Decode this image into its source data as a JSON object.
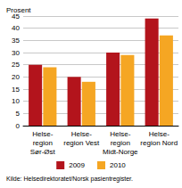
{
  "chart_data": {
    "type": "bar",
    "y_label": "Prosent",
    "source": "Kilde: Helsedirektoratet/Norsk pasientregister.",
    "categories": [
      "Helse-\nregion\nSør-Øst",
      "Helse-\nregion Vest",
      "Helse-\nregion\nMidt-Norge",
      "Helse-\nregion Nord"
    ],
    "series": [
      {
        "name": "2009",
        "color": "#b3141c",
        "values": [
          25,
          20,
          30,
          44
        ]
      },
      {
        "name": "2010",
        "color": "#f5a623",
        "values": [
          24,
          18,
          29,
          37
        ]
      }
    ],
    "ylim": [
      0,
      45
    ],
    "yticks": [
      0,
      5,
      10,
      15,
      20,
      25,
      30,
      35,
      40,
      45
    ],
    "grid": true,
    "legend": "bottom"
  }
}
